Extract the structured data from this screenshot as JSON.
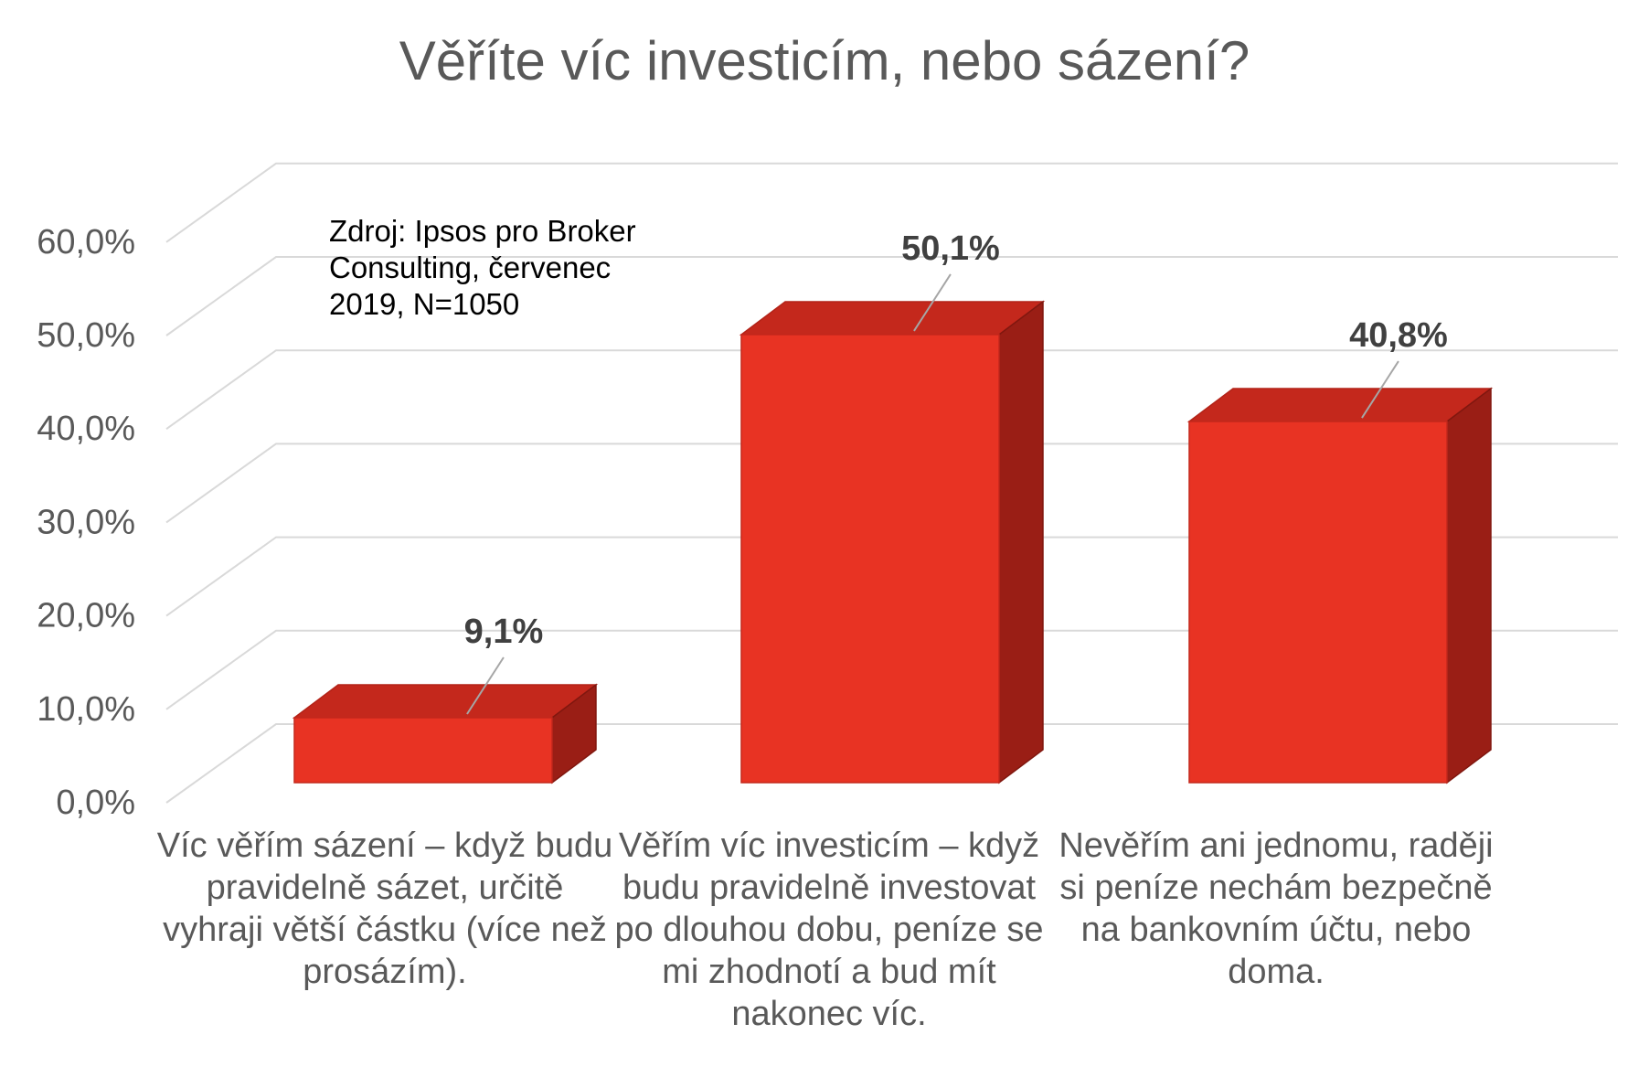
{
  "chart_data": {
    "type": "bar",
    "title": "Věříte víc investicím, nebo sázení?",
    "source_note": "Zdroj: Ipsos pro Broker\nConsulting, červenec\n2019, N=1050",
    "categories": [
      "Víc věřím sázení – když budu pravidelně sázet, určitě vyhraji větší částku (více než prosázím).",
      "Věřím víc investicím – když budu pravidelně investovat po dlouhou dobu, peníze se mi zhodnotí a bud mít nakonec víc.",
      "Nevěřím ani jednomu, raději si peníze nechám bezpečně na bankovním účtu, nebo doma."
    ],
    "values": [
      9.1,
      50.1,
      40.8
    ],
    "data_labels": [
      "9,1%",
      "50,1%",
      "40,8%"
    ],
    "ylim": [
      0,
      60
    ],
    "y_ticks": [
      "0,0%",
      "10,0%",
      "20,0%",
      "30,0%",
      "40,0%",
      "50,0%",
      "60,0%"
    ],
    "grid": true,
    "style": "3d-column",
    "colors": {
      "front": "#e83323",
      "top": "#c4281c",
      "side": "#9a1e15",
      "grid": "#d9d9d9",
      "text": "#595959"
    }
  }
}
